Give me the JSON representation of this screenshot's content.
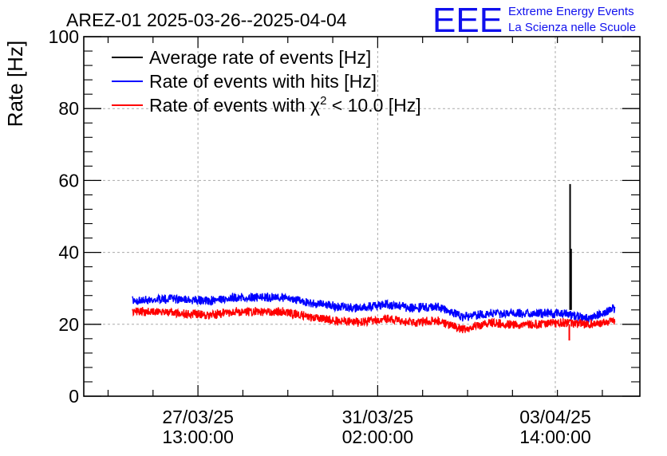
{
  "header": {
    "title": "AREZ-01 2025-03-26--2025-04-04",
    "logo_text": "EEE",
    "org_line1": "Extreme Energy Events",
    "org_line2": "La Scienza nelle Scuole"
  },
  "chart_data": {
    "type": "line",
    "ylabel": "Rate [Hz]",
    "xlabel": "",
    "ylim": [
      0,
      100
    ],
    "xlim": [
      "2025-03-25T07:00",
      "2025-04-05T06:00"
    ],
    "y_ticks": [
      0,
      20,
      40,
      60,
      80,
      100
    ],
    "x_ticks": [
      {
        "x": "2025-03-27T13:00:00",
        "date": "27/03/25",
        "time": "13:00:00"
      },
      {
        "x": "2025-03-31T02:00:00",
        "date": "31/03/25",
        "time": "02:00:00"
      },
      {
        "x": "2025-04-03T14:00:00",
        "date": "03/04/25",
        "time": "14:00:00"
      }
    ],
    "grid": true,
    "legend_position": "top-left",
    "legend": [
      {
        "label": "Average rate of events [Hz]",
        "color": "#000000"
      },
      {
        "label": "Rate of events with hits [Hz]",
        "color": "#0000ff"
      },
      {
        "label_prefix": "Rate of events with ",
        "symbol": "χ",
        "superscript": "2",
        "label_suffix": " < 10.0 [Hz]",
        "color": "#ff0000"
      }
    ],
    "x": [
      "2025-03-26T06:00",
      "2025-03-26T18:00",
      "2025-03-27T06:00",
      "2025-03-27T18:00",
      "2025-03-28T06:00",
      "2025-03-28T18:00",
      "2025-03-29T06:00",
      "2025-03-29T18:00",
      "2025-03-30T06:00",
      "2025-03-30T18:00",
      "2025-03-31T06:00",
      "2025-03-31T18:00",
      "2025-04-01T06:00",
      "2025-04-01T18:00",
      "2025-04-02T06:00",
      "2025-04-02T18:00",
      "2025-04-03T06:00",
      "2025-04-03T18:00",
      "2025-04-04T06:00",
      "2025-04-04T18:00"
    ],
    "series": [
      {
        "name": "Average rate of events [Hz]",
        "color": "#000000",
        "values": [
          26.5,
          27.0,
          27.0,
          26.5,
          27.5,
          27.5,
          27.5,
          26.0,
          25.0,
          24.5,
          25.5,
          24.5,
          25.0,
          22.0,
          23.0,
          23.0,
          23.0,
          23.0,
          21.5,
          24.5
        ]
      },
      {
        "name": "Rate of events with hits [Hz]",
        "color": "#0000ff",
        "values": [
          26.5,
          27.0,
          27.0,
          26.5,
          27.5,
          27.5,
          27.5,
          26.0,
          25.0,
          24.5,
          25.5,
          24.5,
          25.0,
          22.0,
          23.0,
          23.0,
          23.0,
          23.0,
          21.5,
          24.5
        ]
      },
      {
        "name": "Rate of events with χ2 < 10.0 [Hz]",
        "color": "#ff0000",
        "values": [
          23.5,
          23.5,
          23.0,
          22.5,
          23.5,
          23.5,
          23.5,
          22.0,
          21.0,
          20.5,
          21.5,
          20.5,
          21.0,
          18.5,
          20.5,
          20.0,
          20.0,
          20.5,
          20.0,
          21.0
        ]
      }
    ],
    "annotations": [
      {
        "series": "Average rate of events [Hz]",
        "x": "2025-04-03T21:00",
        "peak": 59.0,
        "note": "spike"
      },
      {
        "series": "Average rate of events [Hz]",
        "x": "2025-04-03T21:00",
        "peak": 41.0,
        "note": "spike"
      },
      {
        "series": "Rate of events with χ2 < 10.0 [Hz]",
        "x": "2025-04-03T21:00",
        "min": 15.5,
        "note": "dip"
      }
    ]
  }
}
